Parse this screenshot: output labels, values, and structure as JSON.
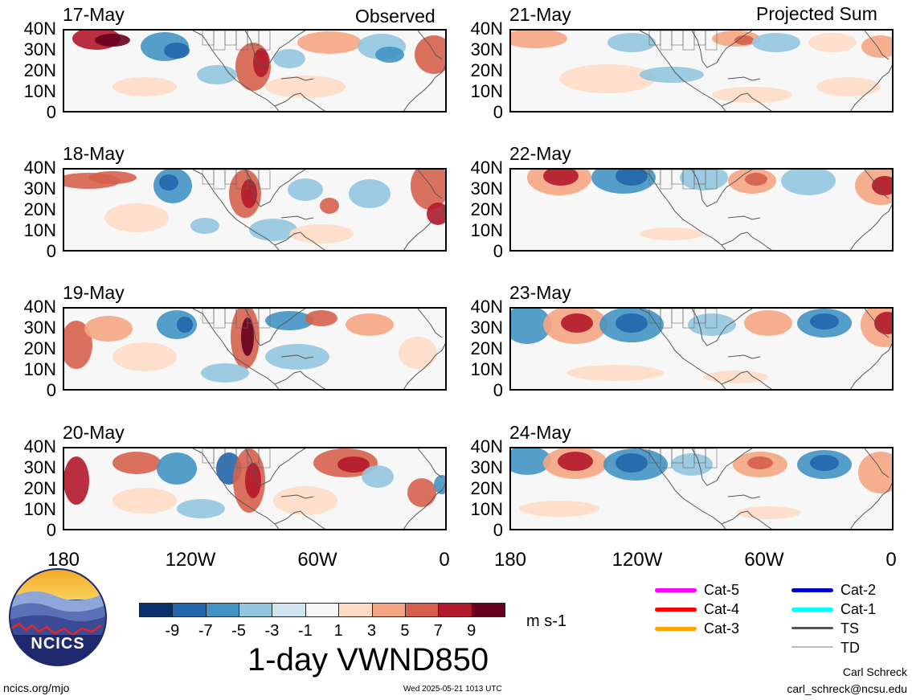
{
  "headers": {
    "left": "Observed",
    "right": "Projected Sum"
  },
  "y_labels": [
    "40N",
    "30N",
    "20N",
    "10N",
    "0"
  ],
  "x_labels": [
    "180",
    "120W",
    "60W",
    "0"
  ],
  "observed_dates": [
    "17-May",
    "18-May",
    "19-May",
    "20-May"
  ],
  "projected_dates": [
    "21-May",
    "22-May",
    "23-May",
    "24-May"
  ],
  "colorbar": {
    "labels": [
      "-9",
      "-7",
      "-5",
      "-3",
      "-1",
      "1",
      "3",
      "5",
      "7",
      "9"
    ],
    "colors": [
      "#08306b",
      "#2166ac",
      "#4393c3",
      "#92c5de",
      "#d1e5f0",
      "#f7f7f7",
      "#fddbc7",
      "#f4a582",
      "#d6604d",
      "#b2182b",
      "#67001f"
    ],
    "units": "m s-1"
  },
  "title": "1-day VWND850",
  "logo": {
    "text": "NCICS"
  },
  "footer": {
    "url": "ncics.org/mjo",
    "timestamp": "Wed 2025-05-21 1013 UTC",
    "author": "Carl Schreck",
    "email": "carl_schreck@ncsu.edu"
  },
  "track_legend": [
    {
      "label": "Cat-5",
      "color": "#ff00ff"
    },
    {
      "label": "Cat-4",
      "color": "#ff0000"
    },
    {
      "label": "Cat-3",
      "color": "#ffa500"
    },
    {
      "label": "Cat-2",
      "color": "#0000cc"
    },
    {
      "label": "Cat-1",
      "color": "#00ffff"
    },
    {
      "label": "TS",
      "color": "#555555"
    },
    {
      "label": "TD",
      "color": "#bbbbbb"
    }
  ]
}
